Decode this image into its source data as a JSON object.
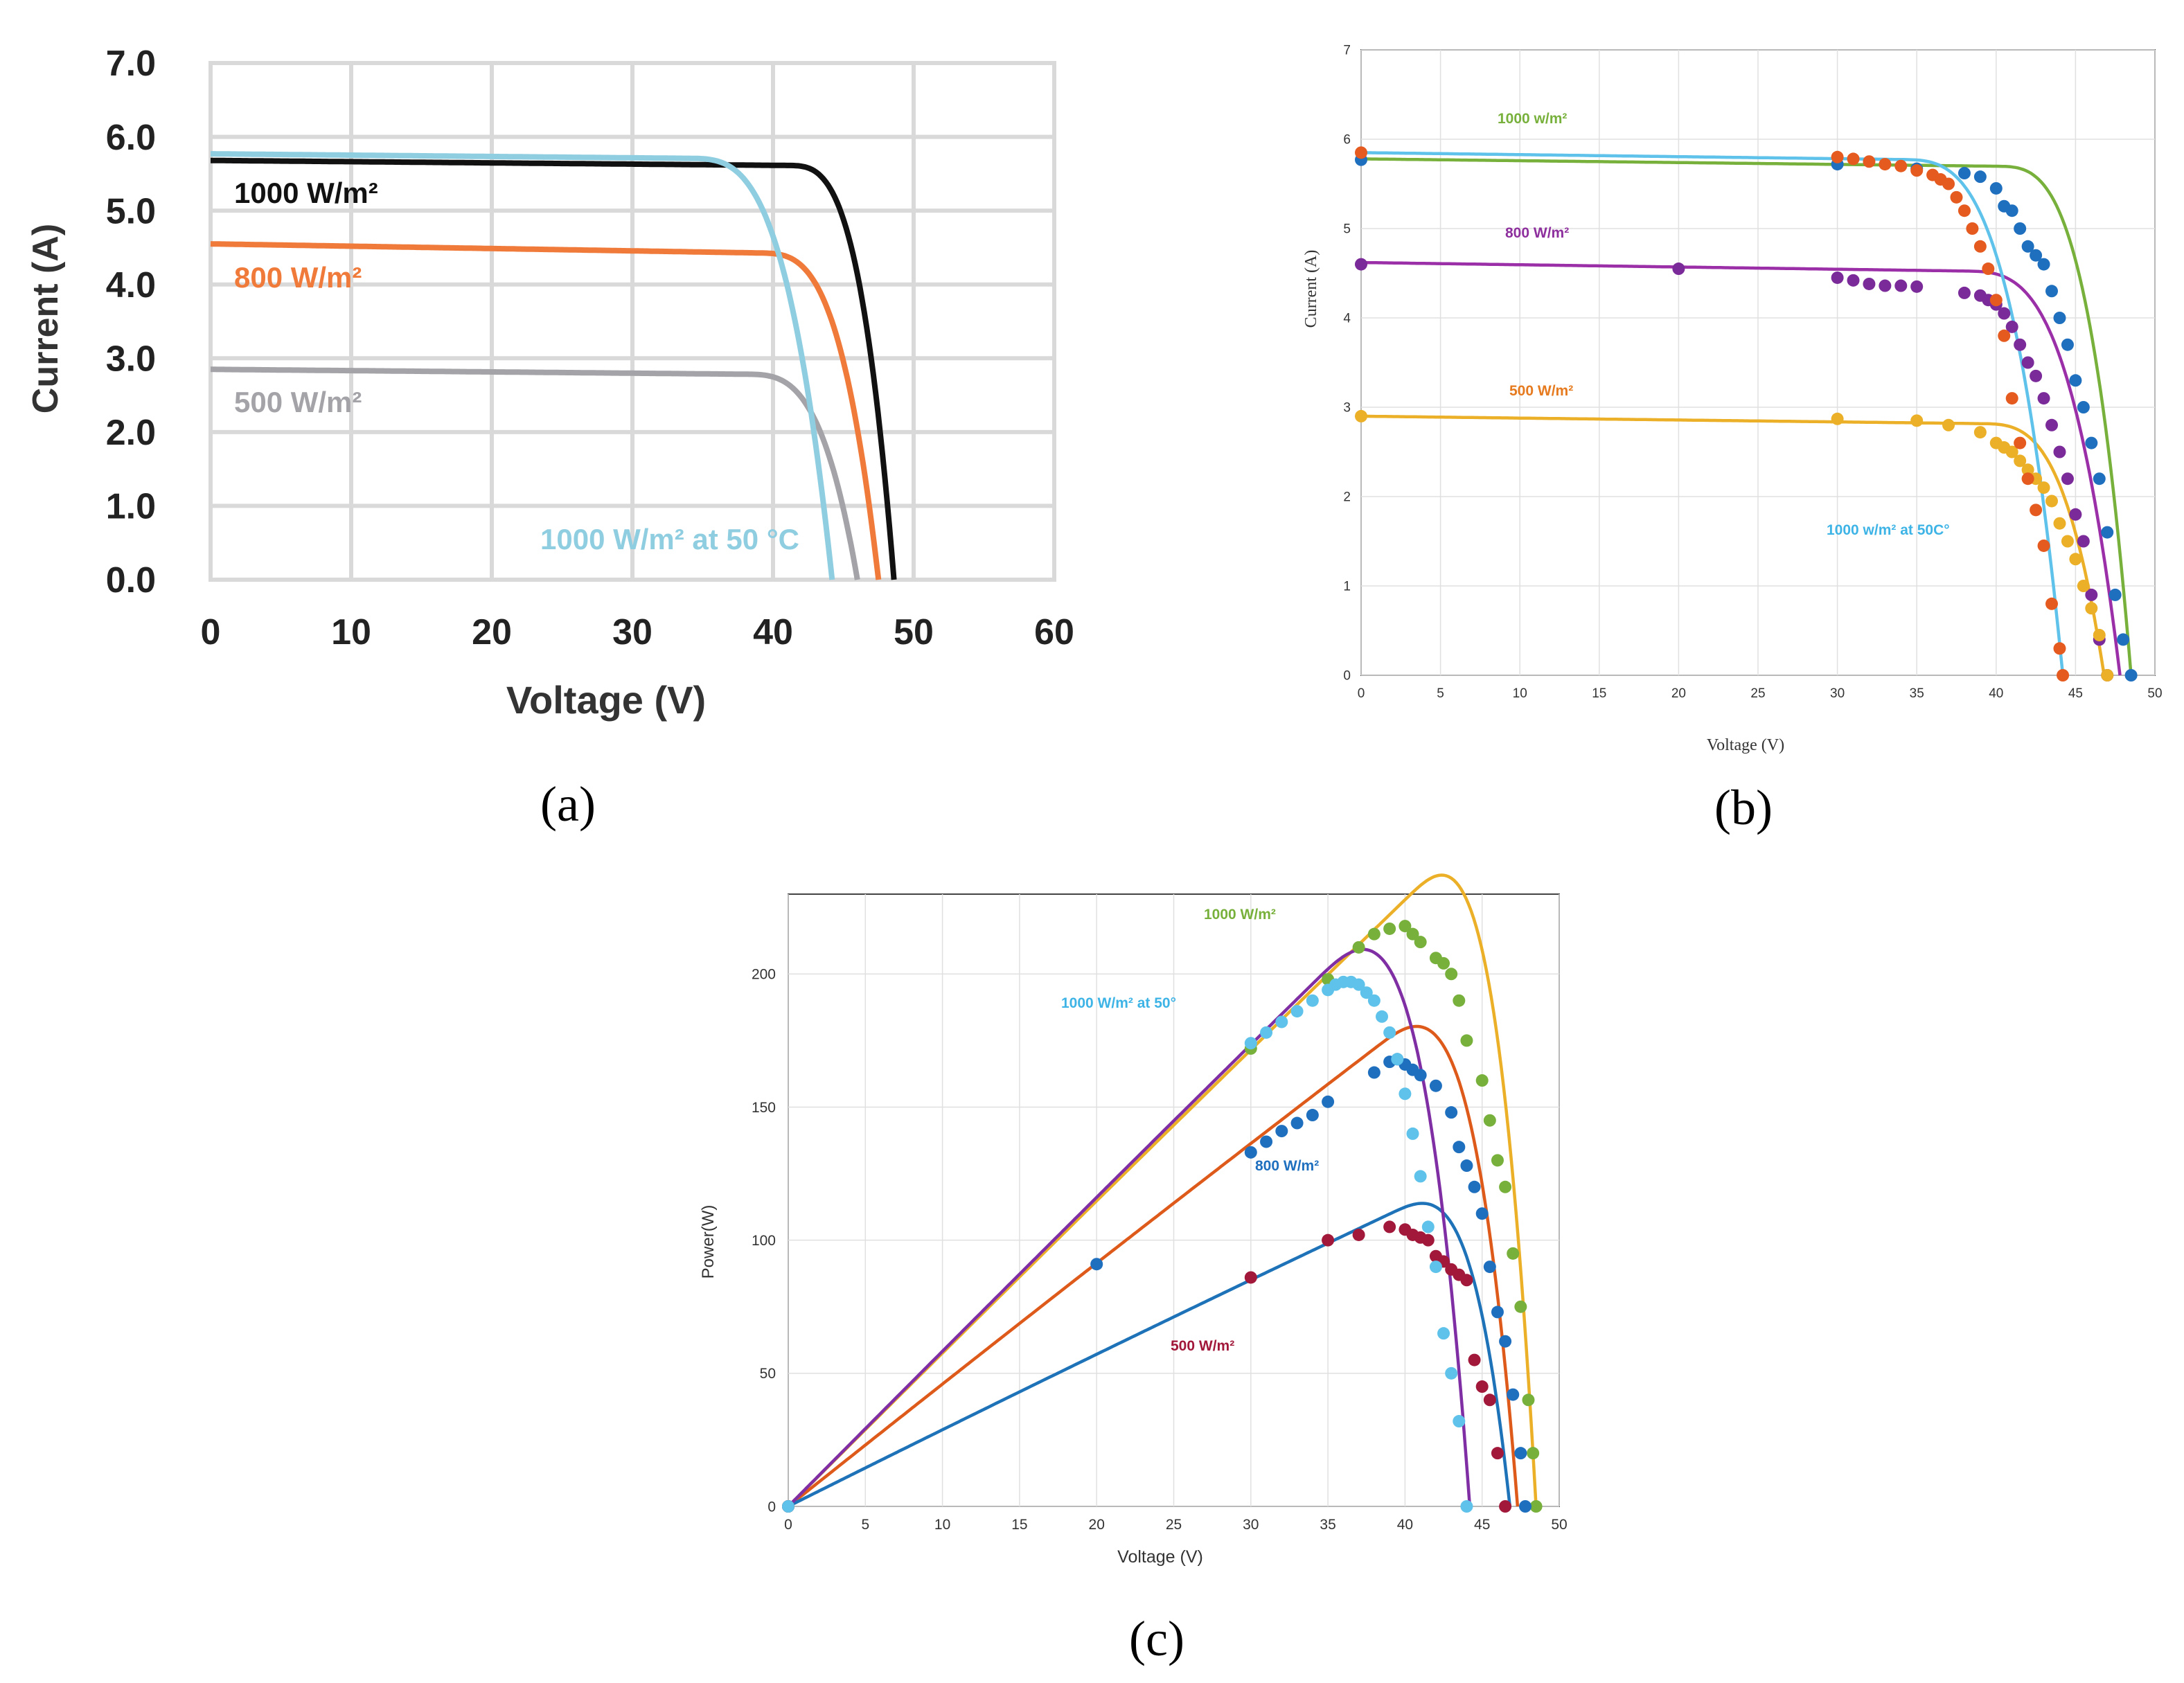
{
  "panel_labels": {
    "a": "(a)",
    "b": "(b)",
    "c": "(c)"
  },
  "chart_data": [
    {
      "id": "a",
      "type": "line",
      "title": "",
      "xlabel": "Voltage (V)",
      "ylabel": "Current (A)",
      "xlim": [
        0,
        60
      ],
      "ylim": [
        0,
        7
      ],
      "grid": true,
      "x_ticks": [
        "0",
        "10",
        "20",
        "30",
        "40",
        "50",
        "60"
      ],
      "y_ticks": [
        "0.0",
        "1.0",
        "2.0",
        "3.0",
        "4.0",
        "5.0",
        "6.0",
        "7.0"
      ],
      "series": [
        {
          "name": "1000 W/m²",
          "color": "#111111",
          "isc": 5.68,
          "voc": 48.6,
          "knee": 41,
          "droop": 0.08
        },
        {
          "name": "800 W/m²",
          "color": "#f07a3a",
          "isc": 4.55,
          "voc": 47.5,
          "knee": 39,
          "droop": 0.15
        },
        {
          "name": "500 W/m²",
          "color": "#a3a3a8",
          "isc": 2.85,
          "voc": 46.0,
          "knee": 38,
          "droop": 0.08
        },
        {
          "name": "1000 W/m² at 50 °C",
          "color": "#8fcde0",
          "isc": 5.77,
          "voc": 44.2,
          "knee": 34,
          "droop": 0.08
        }
      ]
    },
    {
      "id": "b",
      "type": "scatter",
      "title": "",
      "xlabel": "Voltage (V)",
      "ylabel": "Current (A)",
      "xlim": [
        0,
        50
      ],
      "ylim": [
        0,
        7
      ],
      "grid": true,
      "x_ticks": [
        "0",
        "5",
        "10",
        "15",
        "20",
        "25",
        "30",
        "35",
        "40",
        "45",
        "50"
      ],
      "y_ticks": [
        "0",
        "1",
        "2",
        "3",
        "4",
        "5",
        "6",
        "7"
      ],
      "series": [
        {
          "name": "1000 w/m²",
          "color": "#78b03c",
          "point_color": "#1f6fbf",
          "fit": {
            "isc": 5.78,
            "voc": 48.5,
            "knee": 40,
            "droop": 0.1
          },
          "points": [
            [
              0,
              5.77
            ],
            [
              30,
              5.72
            ],
            [
              35,
              5.67
            ],
            [
              38,
              5.62
            ],
            [
              39,
              5.58
            ],
            [
              40,
              5.45
            ],
            [
              40.5,
              5.25
            ],
            [
              41,
              5.2
            ],
            [
              41.5,
              5.0
            ],
            [
              42,
              4.8
            ],
            [
              42.5,
              4.7
            ],
            [
              43,
              4.6
            ],
            [
              43.5,
              4.3
            ],
            [
              44,
              4.0
            ],
            [
              44.5,
              3.7
            ],
            [
              45,
              3.3
            ],
            [
              45.5,
              3.0
            ],
            [
              46,
              2.6
            ],
            [
              46.5,
              2.2
            ],
            [
              47,
              1.6
            ],
            [
              47.5,
              0.9
            ],
            [
              48,
              0.4
            ],
            [
              48.5,
              0.0
            ]
          ]
        },
        {
          "name": "800 W/m²",
          "color": "#9b2fa8",
          "point_color": "#7a2a99",
          "fit": {
            "isc": 4.62,
            "voc": 47.8,
            "knee": 38,
            "droop": 0.12
          },
          "points": [
            [
              0,
              4.6
            ],
            [
              20,
              4.55
            ],
            [
              30,
              4.45
            ],
            [
              31,
              4.42
            ],
            [
              32,
              4.38
            ],
            [
              33,
              4.36
            ],
            [
              34,
              4.36
            ],
            [
              35,
              4.35
            ],
            [
              38,
              4.28
            ],
            [
              39,
              4.25
            ],
            [
              39.5,
              4.2
            ],
            [
              40,
              4.15
            ],
            [
              40.5,
              4.05
            ],
            [
              41,
              3.9
            ],
            [
              41.5,
              3.7
            ],
            [
              42,
              3.5
            ],
            [
              42.5,
              3.35
            ],
            [
              43,
              3.1
            ],
            [
              43.5,
              2.8
            ],
            [
              44,
              2.5
            ],
            [
              44.5,
              2.2
            ],
            [
              45,
              1.8
            ],
            [
              45.5,
              1.5
            ],
            [
              46,
              0.9
            ],
            [
              46.5,
              0.4
            ],
            [
              47,
              0.0
            ]
          ]
        },
        {
          "name": "500 W/m²",
          "color": "#ebb027",
          "point_color": "#ebb027",
          "fit": {
            "isc": 2.9,
            "voc": 46.8,
            "knee": 39,
            "droop": 0.1
          },
          "points": [
            [
              0,
              2.9
            ],
            [
              30,
              2.87
            ],
            [
              35,
              2.85
            ],
            [
              37,
              2.8
            ],
            [
              39,
              2.72
            ],
            [
              40,
              2.6
            ],
            [
              40.5,
              2.55
            ],
            [
              41,
              2.5
            ],
            [
              41.5,
              2.4
            ],
            [
              42,
              2.3
            ],
            [
              42.5,
              2.2
            ],
            [
              43,
              2.1
            ],
            [
              43.5,
              1.95
            ],
            [
              44,
              1.7
            ],
            [
              44.5,
              1.5
            ],
            [
              45,
              1.3
            ],
            [
              45.5,
              1.0
            ],
            [
              46,
              0.75
            ],
            [
              46.5,
              0.45
            ],
            [
              47,
              0.0
            ]
          ]
        },
        {
          "name": "1000 w/m² at 50C°",
          "color": "#5ec2ea",
          "point_color": "#e55a1f",
          "fit": {
            "isc": 5.85,
            "voc": 44.2,
            "knee": 34,
            "droop": 0.1
          },
          "points": [
            [
              0,
              5.85
            ],
            [
              30,
              5.8
            ],
            [
              31,
              5.78
            ],
            [
              32,
              5.75
            ],
            [
              33,
              5.72
            ],
            [
              34,
              5.7
            ],
            [
              35,
              5.65
            ],
            [
              36,
              5.6
            ],
            [
              36.5,
              5.55
            ],
            [
              37,
              5.5
            ],
            [
              37.5,
              5.35
            ],
            [
              38,
              5.2
            ],
            [
              38.5,
              5.0
            ],
            [
              39,
              4.8
            ],
            [
              39.5,
              4.55
            ],
            [
              40,
              4.2
            ],
            [
              40.5,
              3.8
            ],
            [
              41,
              3.1
            ],
            [
              41.5,
              2.6
            ],
            [
              42,
              2.2
            ],
            [
              42.5,
              1.85
            ],
            [
              43,
              1.45
            ],
            [
              43.5,
              0.8
            ],
            [
              44,
              0.3
            ],
            [
              44.2,
              0.0
            ]
          ]
        }
      ]
    },
    {
      "id": "c",
      "type": "scatter",
      "title": "",
      "xlabel": "Voltage (V)",
      "ylabel": "Power(W)",
      "xlim": [
        0,
        50
      ],
      "ylim": [
        0,
        230
      ],
      "grid": true,
      "x_ticks": [
        "0",
        "5",
        "10",
        "15",
        "20",
        "25",
        "30",
        "35",
        "40",
        "45",
        "50"
      ],
      "y_ticks": [
        "0",
        "50",
        "100",
        "150",
        "200"
      ],
      "series": [
        {
          "name": "1000 W/m²",
          "color": "#ebb027",
          "point_color": "#78b03c",
          "fit": {
            "isc": 5.78,
            "voc": 48.5,
            "knee": 40,
            "droop": 0.1
          },
          "points": [
            [
              0,
              0
            ],
            [
              30,
              172
            ],
            [
              35,
              198
            ],
            [
              37,
              210
            ],
            [
              38,
              215
            ],
            [
              39,
              217
            ],
            [
              40,
              218
            ],
            [
              40.5,
              215
            ],
            [
              41,
              212
            ],
            [
              42,
              206
            ],
            [
              42.5,
              204
            ],
            [
              43,
              200
            ],
            [
              43.5,
              190
            ],
            [
              44,
              175
            ],
            [
              45,
              160
            ],
            [
              45.5,
              145
            ],
            [
              46,
              130
            ],
            [
              46.5,
              120
            ],
            [
              47,
              95
            ],
            [
              47.5,
              75
            ],
            [
              48,
              40
            ],
            [
              48.3,
              20
            ],
            [
              48.5,
              0
            ]
          ]
        },
        {
          "name": "800 W/m²",
          "color": "#de5a1a",
          "point_color": "#1f6fbf",
          "fit": {
            "isc": 4.62,
            "voc": 47.3,
            "knee": 38,
            "droop": 0.12
          },
          "points": [
            [
              0,
              0
            ],
            [
              20,
              91
            ],
            [
              30,
              133
            ],
            [
              31,
              137
            ],
            [
              32,
              141
            ],
            [
              33,
              144
            ],
            [
              34,
              147
            ],
            [
              35,
              152
            ],
            [
              38,
              163
            ],
            [
              39,
              167
            ],
            [
              39.5,
              168
            ],
            [
              40,
              166
            ],
            [
              40.5,
              164
            ],
            [
              41,
              162
            ],
            [
              42,
              158
            ],
            [
              43,
              148
            ],
            [
              43.5,
              135
            ],
            [
              44,
              128
            ],
            [
              44.5,
              120
            ],
            [
              45,
              110
            ],
            [
              45.5,
              90
            ],
            [
              46,
              73
            ],
            [
              46.5,
              62
            ],
            [
              47,
              42
            ],
            [
              47.5,
              20
            ],
            [
              47.8,
              0
            ]
          ]
        },
        {
          "name": "500 W/m²",
          "color": "#1d72b8",
          "point_color": "#a1183a",
          "fit": {
            "isc": 2.9,
            "voc": 46.8,
            "knee": 39,
            "droop": 0.1
          },
          "points": [
            [
              0,
              0
            ],
            [
              30,
              86
            ],
            [
              35,
              100
            ],
            [
              37,
              102
            ],
            [
              39,
              105
            ],
            [
              40,
              104
            ],
            [
              40.5,
              102
            ],
            [
              41,
              101
            ],
            [
              41.5,
              100
            ],
            [
              42,
              94
            ],
            [
              42.5,
              92
            ],
            [
              43,
              89
            ],
            [
              43.5,
              87
            ],
            [
              44,
              85
            ],
            [
              44.5,
              55
            ],
            [
              45,
              45
            ],
            [
              45.5,
              40
            ],
            [
              46,
              20
            ],
            [
              46.5,
              0
            ]
          ]
        },
        {
          "name": "1000 W/m² at 50°",
          "color": "#7f2ea3",
          "point_color": "#5ec2ea",
          "fit": {
            "isc": 5.85,
            "voc": 44.2,
            "knee": 34,
            "droop": 0.1
          },
          "points": [
            [
              0,
              0
            ],
            [
              30,
              174
            ],
            [
              31,
              178
            ],
            [
              32,
              182
            ],
            [
              33,
              186
            ],
            [
              34,
              190
            ],
            [
              35,
              194
            ],
            [
              35.5,
              196
            ],
            [
              36,
              197
            ],
            [
              36.5,
              197
            ],
            [
              37,
              196
            ],
            [
              37.5,
              193
            ],
            [
              38,
              190
            ],
            [
              38.5,
              184
            ],
            [
              39,
              178
            ],
            [
              39.5,
              168
            ],
            [
              40,
              155
            ],
            [
              40.5,
              140
            ],
            [
              41,
              124
            ],
            [
              41.5,
              105
            ],
            [
              42,
              90
            ],
            [
              42.5,
              65
            ],
            [
              43,
              50
            ],
            [
              43.5,
              32
            ],
            [
              44,
              0
            ]
          ]
        }
      ]
    }
  ]
}
